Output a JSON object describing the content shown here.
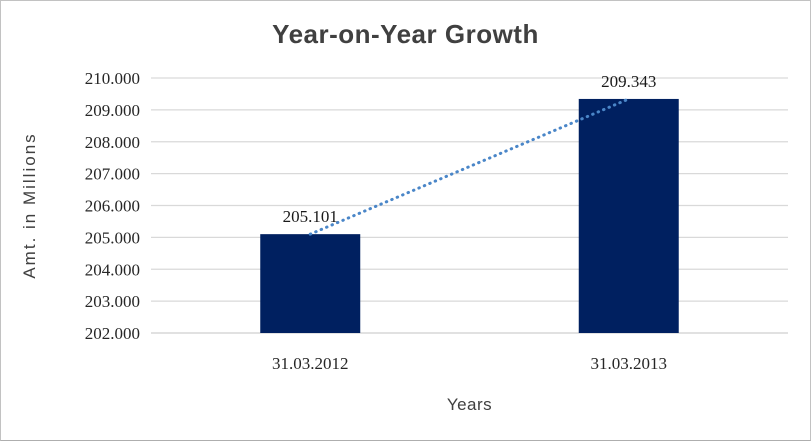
{
  "chart_data": {
    "type": "bar",
    "title": "Year-on-Year Growth",
    "categories": [
      "31.03.2012",
      "31.03.2013"
    ],
    "values": [
      205.101,
      209.343
    ],
    "data_labels": [
      "205.101",
      "209.343"
    ],
    "xlabel": "Years",
    "ylabel": "Amt. in Millions",
    "ylim": [
      202,
      210
    ],
    "ytick_step": 1,
    "ytick_labels": [
      "202.000",
      "203.000",
      "204.000",
      "205.000",
      "206.000",
      "207.000",
      "208.000",
      "209.000",
      "210.000"
    ],
    "grid": true,
    "legend_position": "none",
    "trendline": {
      "style": "dotted",
      "from_value": 205.101,
      "to_value": 209.343,
      "color": "#4a86c8"
    },
    "colors": {
      "bar": "#002060",
      "gridline": "#d9d9d9",
      "baseline": "#cfcfcf",
      "title_text": "#404040",
      "tick_text": "#262626",
      "axis_title_text": "#404040",
      "background": "#ffffff"
    }
  }
}
